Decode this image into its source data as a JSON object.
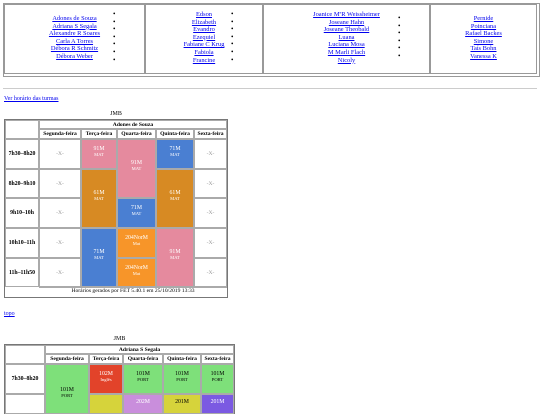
{
  "index": {
    "columns": [
      [
        "Adones de Souza",
        "Adriana S Segala",
        "Alexandre R Soares",
        "Carla A Torres",
        "Débora R Schmitz",
        "Débora Weber"
      ],
      [
        "Edson",
        "Elizabeth",
        "Evandro",
        "Ezequiel",
        "Fabiane C Krug",
        "Fabiola",
        "Francine"
      ],
      [
        "Joanice MªR Weissheimer",
        "Joseane Hahn",
        "Joseane Theobald",
        "Luana",
        "Luciana Mosa",
        "M Marli Flach",
        "Nicoly"
      ],
      [
        "Pernide",
        "Poinciana",
        "Rafael Backes",
        "Simone",
        "Taís Bohn",
        "Vanessa K"
      ]
    ]
  },
  "links": {
    "ver_horario": "Ver horário das turmas",
    "topo": "topo"
  },
  "timetable1": {
    "school": "JMB",
    "teacher": "Adones de Souza",
    "days": [
      "Segunda-feira",
      "Terça-feira",
      "Quarta-feira",
      "Quinta-feira",
      "Sexta-feira"
    ],
    "times": [
      "7h30–8h20",
      "8h20–9h10",
      "9h10–10h",
      "10h10–11h",
      "11h–11h50"
    ],
    "empty": "-X-",
    "blocks": {
      "t91": "91M",
      "tmat": "MAT",
      "q91": "91M",
      "q71": "71M",
      "t61": "61M",
      "qi61": "61M",
      "q71b": "71M",
      "t71": "71M",
      "q204a": "204NorM",
      "q204b": "204NorM",
      "qmat": "Mat",
      "qi91": "91M"
    },
    "footer": "Horários gerados por FET 5.40.1 em 25/10/2019 13:33"
  },
  "timetable2": {
    "school": "JMB",
    "teacher": "Adriana S Segala",
    "days": [
      "Segunda-feira",
      "Terça-feira",
      "Quarta-feira",
      "Quinta-feira",
      "Sexta-feira"
    ],
    "times": [
      "7h30–8h20"
    ],
    "blocks": {
      "s101": "101M",
      "port": "PORT",
      "t102": "102M",
      "ingles": "Inglês",
      "q101": "101M",
      "qi101": "101M",
      "sx101": "101M",
      "r2a": "202M",
      "r2b": "201M",
      "r2c": "201M"
    }
  },
  "colors": {
    "pink": "#e58a9e",
    "orange": "#d78a23",
    "blue": "#4a7fd2",
    "bright_orange": "#f79529",
    "green": "#7ee07a",
    "red": "#e2432a",
    "yellow": "#d6d33b",
    "lilac": "#c98edc",
    "violet": "#7b5ae2"
  }
}
